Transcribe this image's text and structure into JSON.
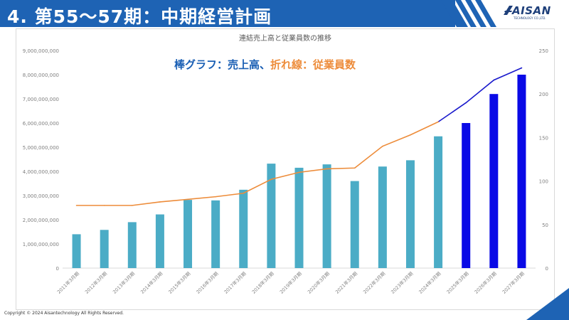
{
  "slide_title": "4. 第55～57期：中期経営計画",
  "logo": {
    "name": "AISAN",
    "subtitle": "TECHNOLOGY CO.,LTD."
  },
  "footer": {
    "copyright": "Copyright © 2024 Aisantechnology All Rights Reserved."
  },
  "chart_data": {
    "type": "bar",
    "title": "連結売上高と従業員数の推移",
    "annotation": {
      "prefix": "棒グラフ：売上高、",
      "suffix": "折れ線：従業員数"
    },
    "categories": [
      "2011年3月期",
      "2012年3月期",
      "2013年3月期",
      "2014年3月期",
      "2015年3月期",
      "2016年3月期",
      "2017年3月期",
      "2018年3月期",
      "2019年3月期",
      "2020年3月期",
      "2021年3月期",
      "2022年3月期",
      "2023年3月期",
      "2024年3月期",
      "2025年3月期",
      "2026年3月期",
      "2027年3月期"
    ],
    "series": [
      {
        "name": "売上高",
        "kind": "bar",
        "axis": "left",
        "values": [
          1400000000,
          1580000000,
          1900000000,
          2220000000,
          2820000000,
          2800000000,
          3240000000,
          4320000000,
          4150000000,
          4290000000,
          3600000000,
          4200000000,
          4460000000,
          5450000000,
          6000000000,
          7200000000,
          8000000000
        ],
        "plan_from_index": 14
      },
      {
        "name": "従業員数",
        "kind": "line",
        "axis": "right",
        "values": [
          72,
          72,
          72,
          76,
          79,
          82,
          86,
          102,
          110,
          114,
          115,
          140,
          153,
          168,
          190,
          216,
          230
        ],
        "plan_from_index": 13
      }
    ],
    "y_left": {
      "min": 0,
      "max": 9000000000,
      "step": 1000000000,
      "tick_labels": [
        "0",
        "1,000,000,000",
        "2,000,000,000",
        "3,000,000,000",
        "4,000,000,000",
        "5,000,000,000",
        "6,000,000,000",
        "7,000,000,000",
        "8,000,000,000",
        "9,000,000,000"
      ]
    },
    "y_right": {
      "min": 0,
      "max": 250,
      "step": 50,
      "tick_labels": [
        "0",
        "50",
        "100",
        "150",
        "200",
        "250"
      ]
    },
    "colors": {
      "bar_actual": "#4bacc6",
      "bar_plan": "#0a0ae6",
      "line_actual": "#ed8c3a",
      "line_plan": "#1a1acc",
      "annotation_blue": "#1a5fb4",
      "annotation_orange": "#ed8c3a"
    },
    "grid": false
  }
}
